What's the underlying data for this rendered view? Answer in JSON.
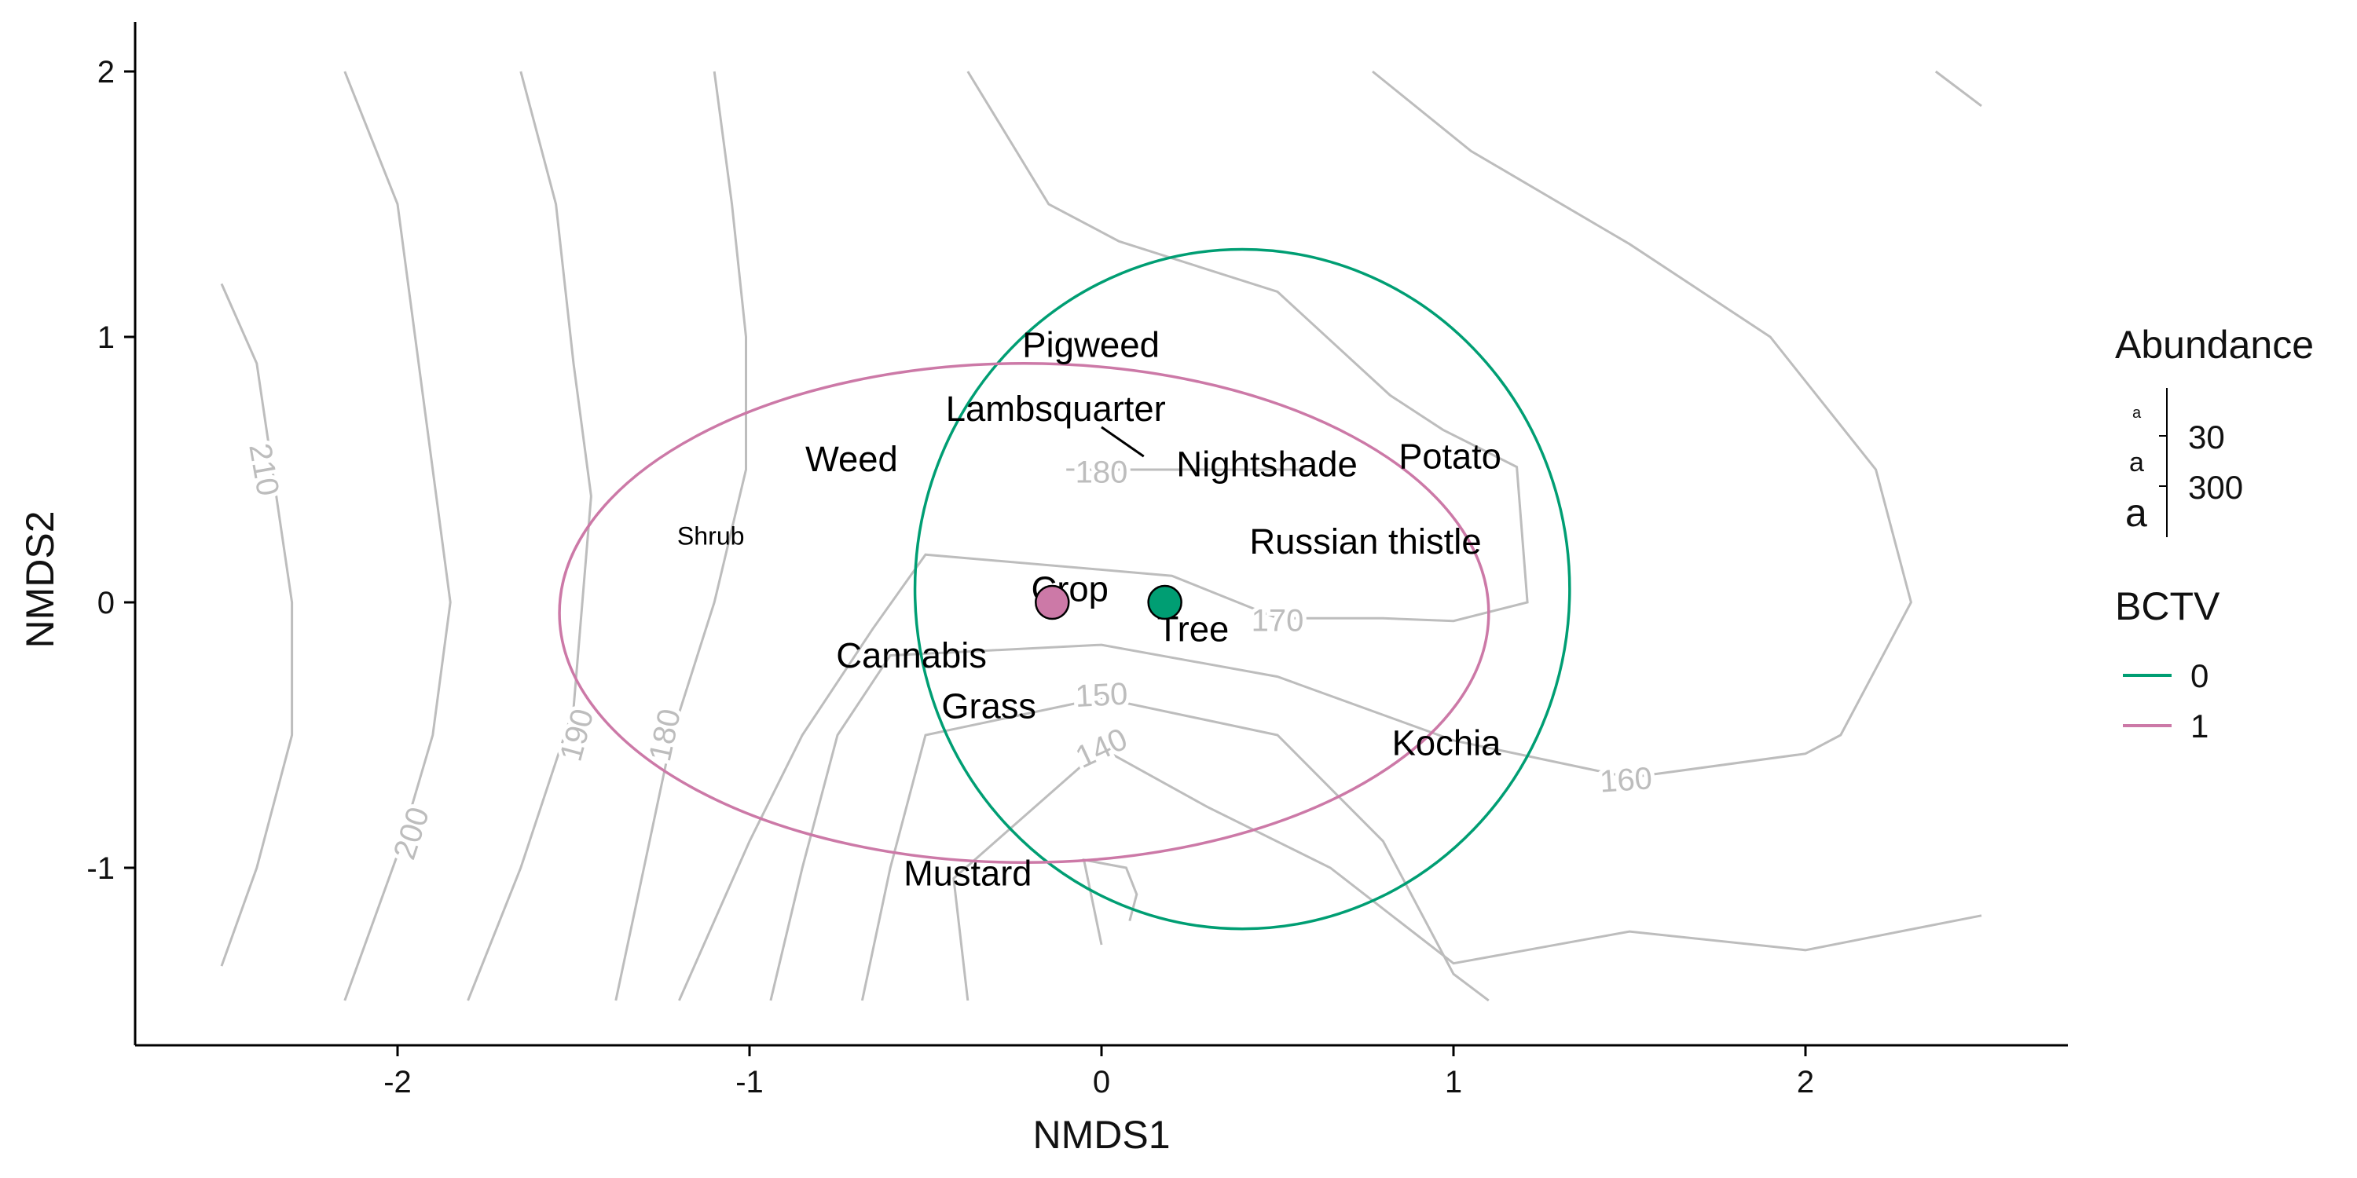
{
  "chart_data": {
    "type": "scatter",
    "xlabel": "NMDS1",
    "ylabel": "NMDS2",
    "xlim": [
      -2.75,
      2.75
    ],
    "ylim": [
      -1.67,
      2.18
    ],
    "x_ticks": [
      -2,
      -1,
      0,
      1,
      2
    ],
    "x_tick_labels": [
      "-2",
      "-1",
      "0",
      "1",
      "2"
    ],
    "y_ticks": [
      -1,
      0,
      1,
      2
    ],
    "y_tick_labels": [
      "-1",
      "0",
      "1",
      "2"
    ],
    "grid": false,
    "legend_position": "right",
    "colors": {
      "bctv_0": "#009E73",
      "bctv_1": "#CC79A7",
      "contour": "#bdbdbd",
      "text": "#000000"
    },
    "centroids": [
      {
        "group": "0",
        "x": 0.18,
        "y": 0.0,
        "color": "#009E73"
      },
      {
        "group": "1",
        "x": -0.14,
        "y": 0.0,
        "color": "#CC79A7"
      }
    ],
    "ellipses": [
      {
        "group": "0",
        "cx": 0.4,
        "cy": 0.05,
        "rx": 0.93,
        "ry": 1.28,
        "color": "#009E73"
      },
      {
        "group": "1",
        "cx": -0.22,
        "cy": -0.04,
        "rx": 1.32,
        "ry": 0.94,
        "color": "#CC79A7"
      }
    ],
    "species": [
      {
        "label": "Pigweed",
        "x": -0.03,
        "y": 0.97,
        "abundance": 280
      },
      {
        "label": "Lambsquarter",
        "x": -0.13,
        "y": 0.73,
        "abundance": 270
      },
      {
        "label": "Nightshade",
        "x": 0.47,
        "y": 0.52,
        "abundance": 280
      },
      {
        "label": "Potato",
        "x": 0.99,
        "y": 0.55,
        "abundance": 260
      },
      {
        "label": "Weed",
        "x": -0.71,
        "y": 0.54,
        "abundance": 270
      },
      {
        "label": "Shrub",
        "x": -1.11,
        "y": 0.25,
        "abundance": 25
      },
      {
        "label": "Russian thistle",
        "x": 0.75,
        "y": 0.23,
        "abundance": 270
      },
      {
        "label": "Crop",
        "x": -0.09,
        "y": 0.05,
        "abundance": 270
      },
      {
        "label": "Tree",
        "x": 0.26,
        "y": -0.1,
        "abundance": 270
      },
      {
        "label": "Cannabis",
        "x": -0.54,
        "y": -0.2,
        "abundance": 270
      },
      {
        "label": "Grass",
        "x": -0.32,
        "y": -0.39,
        "abundance": 260
      },
      {
        "label": "Kochia",
        "x": 0.98,
        "y": -0.53,
        "abundance": 270
      },
      {
        "label": "Mustard",
        "x": -0.38,
        "y": -1.02,
        "abundance": 260
      }
    ],
    "leader_lines": [
      {
        "from": [
          0.0,
          0.66
        ],
        "to": [
          0.12,
          0.55
        ]
      }
    ],
    "contours": [
      {
        "level": 210,
        "points": [
          [
            -2.5,
            1.2
          ],
          [
            -2.4,
            0.9
          ],
          [
            -2.3,
            0
          ],
          [
            -2.3,
            -0.5
          ],
          [
            -2.4,
            -1
          ],
          [
            -2.5,
            -1.37
          ]
        ],
        "label": {
          "text": "210",
          "x": -2.38,
          "y": 0.5,
          "angle": 80
        }
      },
      {
        "level": 200,
        "points": [
          [
            -2.15,
            2
          ],
          [
            -2.0,
            1.5
          ],
          [
            -1.9,
            0.5
          ],
          [
            -1.85,
            0
          ],
          [
            -1.9,
            -0.5
          ],
          [
            -2.0,
            -0.95
          ],
          [
            -2.15,
            -1.5
          ]
        ],
        "label": {
          "text": "200",
          "x": -1.96,
          "y": -0.87,
          "angle": -72
        }
      },
      {
        "level": 190,
        "points": [
          [
            -1.65,
            2
          ],
          [
            -1.55,
            1.5
          ],
          [
            -1.5,
            0.9
          ],
          [
            -1.45,
            0.4
          ],
          [
            -1.5,
            -0.4
          ],
          [
            -1.65,
            -1
          ],
          [
            -1.8,
            -1.5
          ]
        ],
        "label": {
          "text": "190",
          "x": -1.49,
          "y": -0.5,
          "angle": -75
        }
      },
      {
        "level": 180,
        "points": [
          [
            -1.1,
            2
          ],
          [
            -1.05,
            1.5
          ],
          [
            -1.01,
            1.0
          ],
          [
            -1.01,
            0.5
          ],
          [
            -1.1,
            0
          ],
          [
            -1.22,
            -0.5
          ],
          [
            -1.3,
            -1
          ],
          [
            -1.38,
            -1.5
          ]
        ],
        "label": {
          "text": "180",
          "x": -1.24,
          "y": -0.5,
          "angle": -78
        }
      },
      {
        "level": 180,
        "points": [
          [
            -0.1,
            0.5
          ],
          [
            0.58,
            0.5
          ]
        ],
        "label": {
          "text": "180",
          "x": 0.0,
          "y": 0.49,
          "angle": 0
        }
      },
      {
        "level": 170,
        "points": [
          [
            -1.2,
            -1.5
          ],
          [
            -1.0,
            -0.9
          ],
          [
            -0.85,
            -0.5
          ],
          [
            -0.65,
            -0.1
          ],
          [
            -0.5,
            0.18
          ],
          [
            0.2,
            0.1
          ],
          [
            0.5,
            -0.06
          ],
          [
            0.8,
            -0.06
          ],
          [
            1.0,
            -0.07
          ],
          [
            1.21,
            0.0
          ],
          [
            1.18,
            0.51
          ],
          [
            0.97,
            0.65
          ],
          [
            0.82,
            0.78
          ],
          [
            0.5,
            1.17
          ],
          [
            0.05,
            1.36
          ],
          [
            -0.15,
            1.5
          ],
          [
            -0.38,
            2.0
          ]
        ],
        "label": {
          "text": "170",
          "x": 0.5,
          "y": -0.07,
          "angle": 0
        }
      },
      {
        "level": 160,
        "points": [
          [
            -0.94,
            -1.5
          ],
          [
            -0.85,
            -1.0
          ],
          [
            -0.75,
            -0.5
          ],
          [
            -0.6,
            -0.2
          ],
          [
            0,
            -0.16
          ],
          [
            0.5,
            -0.28
          ],
          [
            1.0,
            -0.52
          ],
          [
            1.5,
            -0.66
          ],
          [
            2.0,
            -0.57
          ],
          [
            2.1,
            -0.5
          ],
          [
            2.3,
            0
          ],
          [
            2.2,
            0.5
          ],
          [
            1.9,
            1.0
          ],
          [
            1.5,
            1.35
          ],
          [
            1.05,
            1.7
          ],
          [
            0.77,
            2.0
          ]
        ],
        "label": {
          "text": "160",
          "x": 1.49,
          "y": -0.67,
          "angle": -4
        }
      },
      {
        "level": 150,
        "points": [
          [
            -0.68,
            -1.5
          ],
          [
            -0.6,
            -1.0
          ],
          [
            -0.5,
            -0.5
          ],
          [
            0,
            -0.36
          ],
          [
            0.5,
            -0.5
          ],
          [
            0.8,
            -0.9
          ],
          [
            1.0,
            -1.4
          ],
          [
            1.1,
            -1.5
          ]
        ],
        "label": {
          "text": "150",
          "x": 0.0,
          "y": -0.35,
          "angle": -3
        }
      },
      {
        "level": 140,
        "points": [
          [
            -0.38,
            -1.5
          ],
          [
            -0.42,
            -1.04
          ],
          [
            0,
            -0.55
          ],
          [
            0.3,
            -0.77
          ],
          [
            0.65,
            -1.0
          ],
          [
            1.0,
            -1.36
          ],
          [
            1.5,
            -1.24
          ],
          [
            2.0,
            -1.31
          ],
          [
            2.5,
            -1.18
          ]
        ],
        "label": {
          "text": "140",
          "x": 0.0,
          "y": -0.55,
          "angle": -25
        }
      },
      {
        "level": 140,
        "points": [
          [
            0,
            -1.29
          ],
          [
            -0.05,
            -0.97
          ],
          [
            0.07,
            -1.0
          ],
          [
            0.1,
            -1.1
          ],
          [
            0.08,
            -1.2
          ]
        ],
        "label": null
      },
      {
        "level": 140,
        "points": [
          [
            2.37,
            2.0
          ],
          [
            2.5,
            1.87
          ]
        ],
        "label": null
      }
    ]
  },
  "legend": {
    "abundance_title": "Abundance",
    "abundance_sample_glyph": "a",
    "abundance_entries": [
      {
        "label": "30",
        "value": 30
      },
      {
        "label": "300",
        "value": 300
      }
    ],
    "bctv_title": "BCTV",
    "bctv_entries": [
      {
        "label": "0",
        "color": "#009E73"
      },
      {
        "label": "1",
        "color": "#CC79A7"
      }
    ]
  }
}
